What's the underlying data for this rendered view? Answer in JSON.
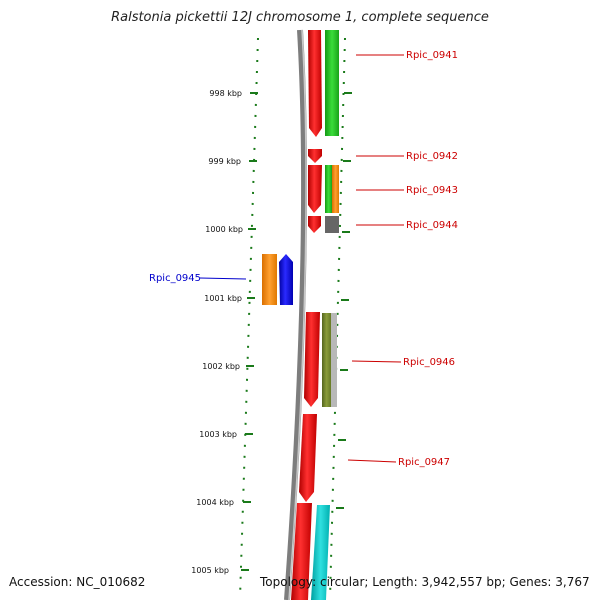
{
  "title": "Ralstonia pickettii 12J chromosome 1, complete sequence",
  "accession": "Accession: NC_010682",
  "topology": "Topology: circular; Length: 3,942,557 bp; Genes: 3,767",
  "colors": {
    "forward_cds": "#ff0000",
    "reverse_cds": "#0000ff",
    "backbone": "#888888",
    "tick": "#1a7a1a",
    "label_forward": "#cc0000",
    "label_reverse": "#0000cc",
    "cog_green": "#22cc22",
    "cog_orange": "#ff8c00",
    "cog_gray": "#666666",
    "cog_olive": "#6b7f2a",
    "cog_light_gray": "#b0b0b0",
    "cog_cyan": "#00cccc"
  },
  "ticks": [
    {
      "label": "998 kbp"
    },
    {
      "label": "999 kbp"
    },
    {
      "label": "1000 kbp"
    },
    {
      "label": "1001 kbp"
    },
    {
      "label": "1002 kbp"
    },
    {
      "label": "1003 kbp"
    },
    {
      "label": "1004 kbp"
    },
    {
      "label": "1005 kbp"
    }
  ],
  "genes": [
    {
      "name": "Rpic_0941",
      "strand": "forward",
      "cog_color": "cog_green"
    },
    {
      "name": "Rpic_0942",
      "strand": "forward",
      "cog_color": ""
    },
    {
      "name": "Rpic_0943",
      "strand": "forward",
      "cog_color": "cog_orange"
    },
    {
      "name": "Rpic_0944",
      "strand": "forward",
      "cog_color": "cog_gray"
    },
    {
      "name": "Rpic_0945",
      "strand": "reverse",
      "cog_color": "cog_orange"
    },
    {
      "name": "Rpic_0946",
      "strand": "forward",
      "cog_color": "cog_olive"
    },
    {
      "name": "Rpic_0947",
      "strand": "forward",
      "cog_color": ""
    },
    {
      "name": "",
      "strand": "forward",
      "cog_color": "cog_cyan"
    }
  ]
}
